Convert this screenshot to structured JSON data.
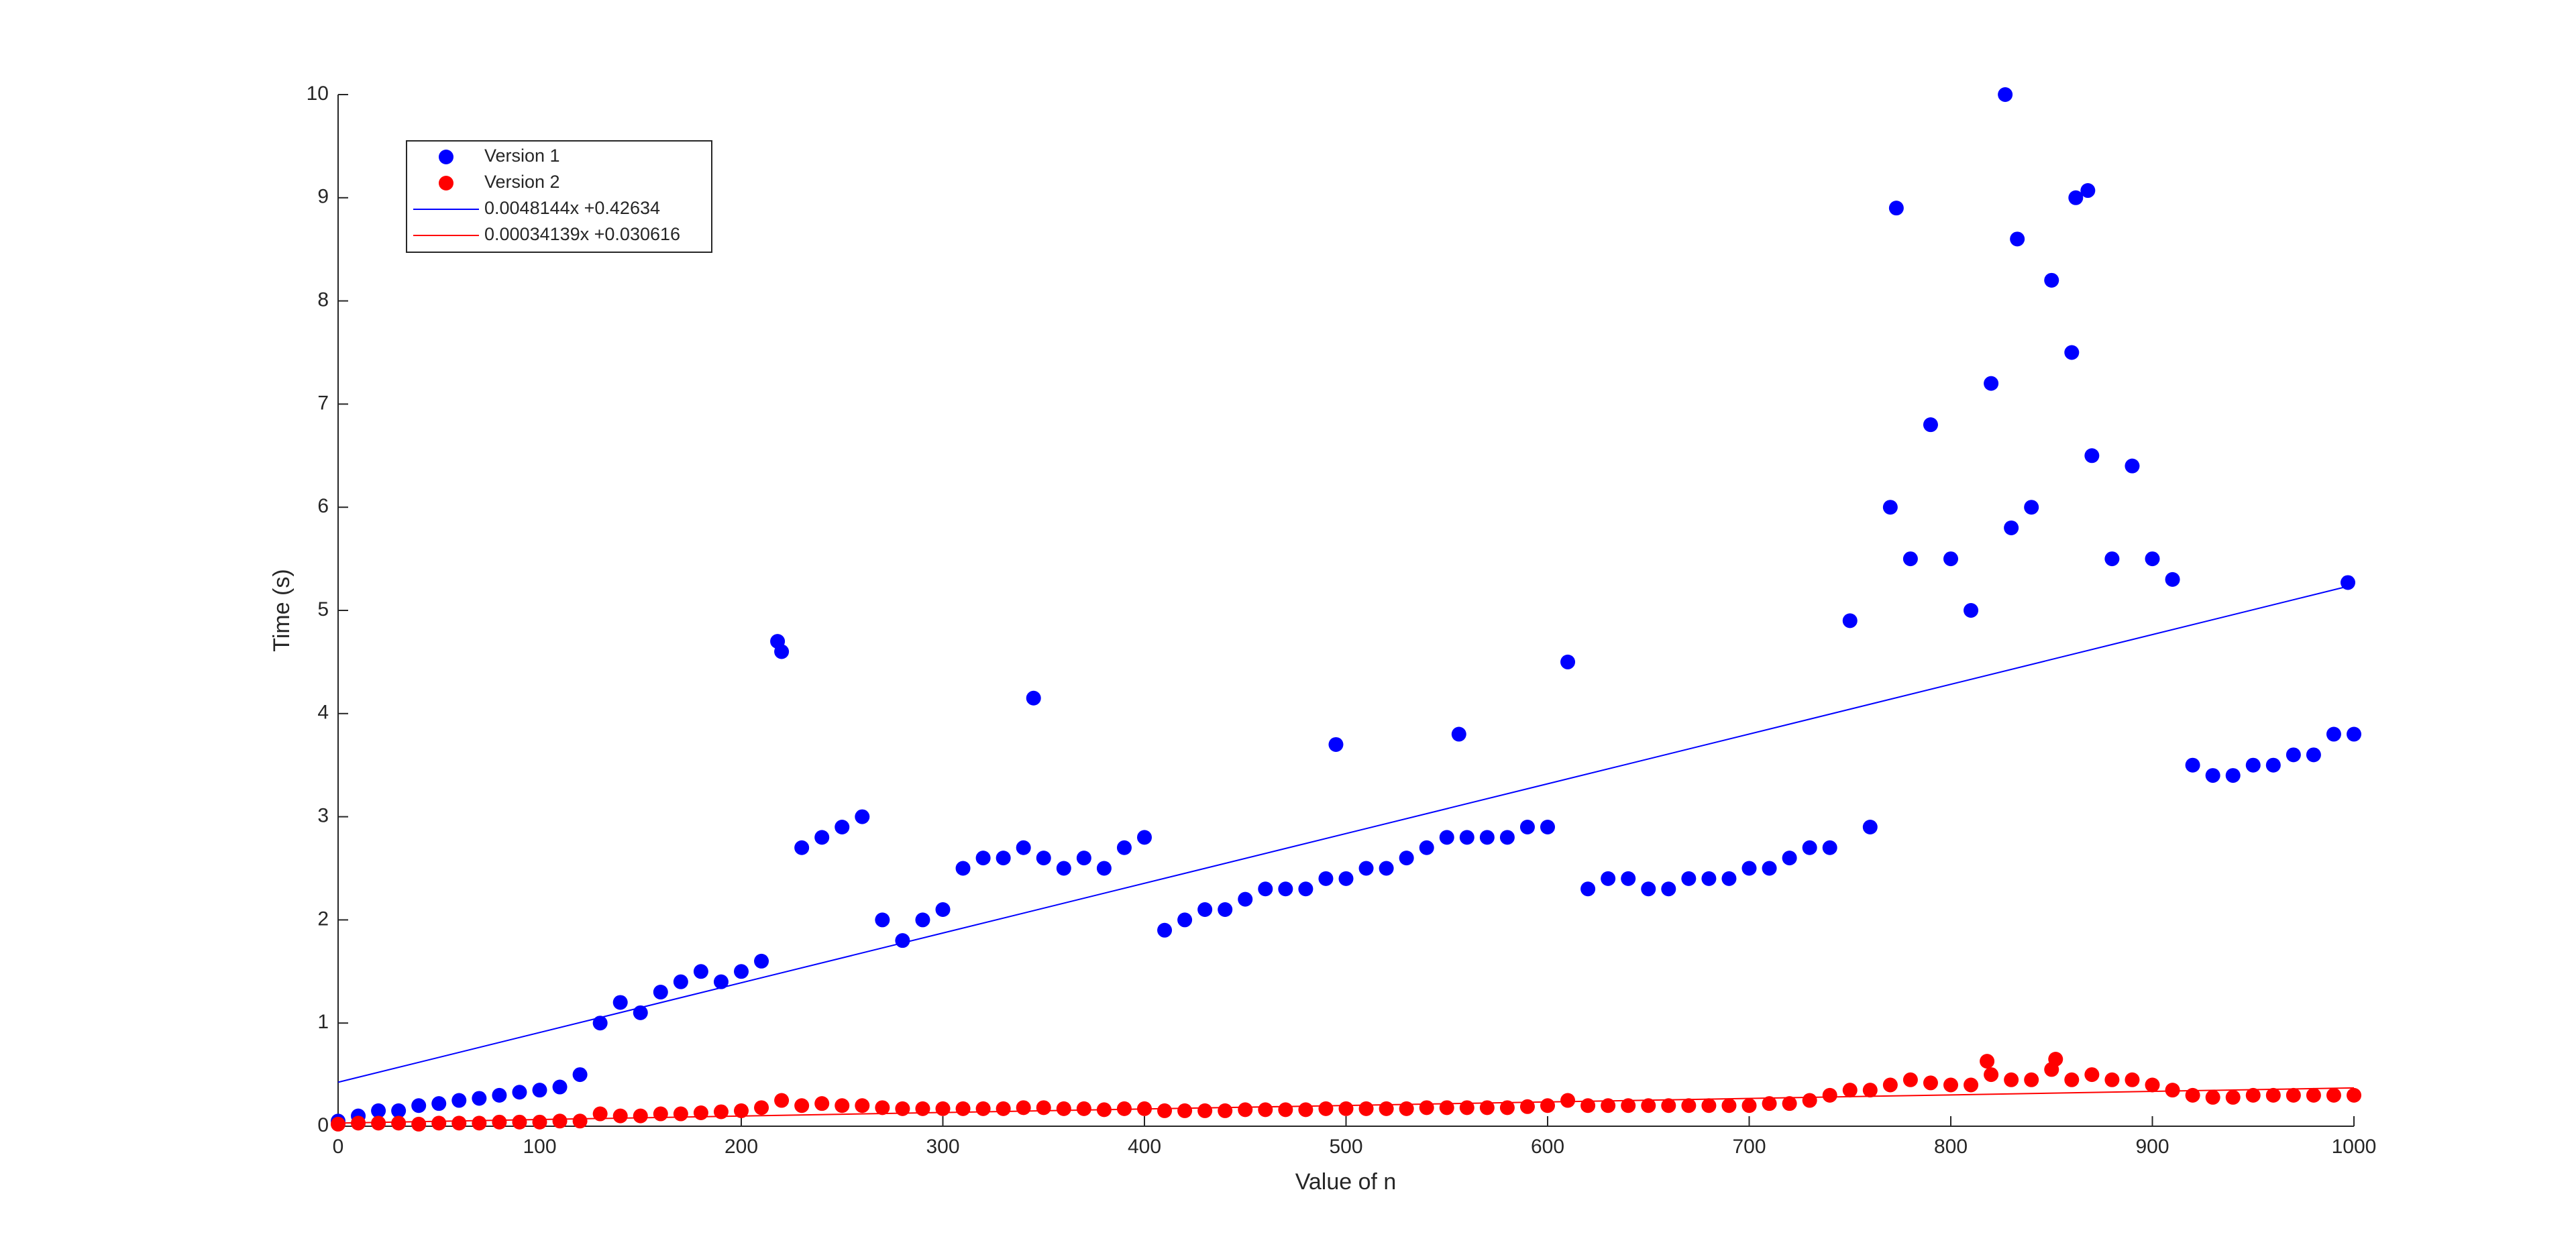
{
  "chart_data": {
    "type": "scatter",
    "x_label": "Value of n",
    "y_label": "Time (s)",
    "xlim": [
      0,
      1000
    ],
    "ylim": [
      0,
      10
    ],
    "xticks": [
      0,
      100,
      200,
      300,
      400,
      500,
      600,
      700,
      800,
      900,
      1000
    ],
    "yticks": [
      0,
      1,
      2,
      3,
      4,
      5,
      6,
      7,
      8,
      9,
      10
    ],
    "legend": "upper left",
    "series": [
      {
        "name": "Version 1",
        "color": "#0000ff",
        "kind": "points",
        "x": [
          0,
          10,
          20,
          30,
          40,
          50,
          60,
          70,
          80,
          90,
          100,
          110,
          120,
          130,
          140,
          150,
          160,
          170,
          180,
          190,
          200,
          210,
          220,
          230,
          240,
          250,
          260,
          270,
          280,
          290,
          300,
          310,
          320,
          330,
          340,
          350,
          360,
          370,
          380,
          390,
          400,
          410,
          420,
          430,
          440,
          450,
          460,
          470,
          480,
          490,
          500,
          510,
          520,
          530,
          540,
          550,
          560,
          570,
          580,
          590,
          600,
          610,
          620,
          630,
          640,
          650,
          660,
          670,
          680,
          690,
          700,
          710,
          720,
          730,
          740,
          750,
          760,
          770,
          780,
          790,
          800,
          810,
          820,
          830,
          840,
          850,
          860,
          870,
          880,
          890,
          900,
          910,
          920,
          930,
          940,
          950,
          960,
          970,
          980,
          990,
          1000,
          827,
          773,
          868,
          997,
          345,
          495,
          218,
          556,
          862,
          833
        ],
        "values": [
          0.05,
          0.1,
          0.15,
          0.15,
          0.2,
          0.22,
          0.25,
          0.27,
          0.3,
          0.33,
          0.35,
          0.38,
          0.5,
          1.0,
          1.2,
          1.1,
          1.3,
          1.4,
          1.5,
          1.4,
          1.5,
          1.6,
          4.6,
          2.7,
          2.8,
          2.9,
          3.0,
          2.0,
          1.8,
          2.0,
          2.1,
          2.5,
          2.6,
          2.6,
          2.7,
          2.6,
          2.5,
          2.6,
          2.5,
          2.7,
          2.8,
          1.9,
          2.0,
          2.1,
          2.1,
          2.2,
          2.3,
          2.3,
          2.3,
          2.4,
          2.4,
          2.5,
          2.5,
          2.6,
          2.7,
          2.8,
          2.8,
          2.8,
          2.8,
          2.9,
          2.9,
          4.5,
          2.3,
          2.4,
          2.4,
          2.3,
          2.3,
          2.4,
          2.4,
          2.4,
          2.5,
          2.5,
          2.6,
          2.7,
          2.7,
          4.9,
          2.9,
          6.0,
          5.5,
          6.8,
          5.5,
          5.0,
          7.2,
          5.8,
          6.0,
          8.2,
          7.5,
          6.5,
          5.5,
          6.4,
          5.5,
          5.3,
          3.5,
          3.4,
          3.4,
          3.5,
          3.5,
          3.6,
          3.6,
          3.8,
          3.8,
          10,
          8.9,
          9.07,
          5.27,
          4.15,
          3.7,
          4.7,
          3.8,
          9.0,
          8.6
        ]
      },
      {
        "name": "Version 2",
        "color": "#ff0000",
        "kind": "points",
        "x": [
          0,
          10,
          20,
          30,
          40,
          50,
          60,
          70,
          80,
          90,
          100,
          110,
          120,
          130,
          140,
          150,
          160,
          170,
          180,
          190,
          200,
          210,
          220,
          230,
          240,
          250,
          260,
          270,
          280,
          290,
          300,
          310,
          320,
          330,
          340,
          350,
          360,
          370,
          380,
          390,
          400,
          410,
          420,
          430,
          440,
          450,
          460,
          470,
          480,
          490,
          500,
          510,
          520,
          530,
          540,
          550,
          560,
          570,
          580,
          590,
          600,
          610,
          620,
          630,
          640,
          650,
          660,
          670,
          680,
          690,
          700,
          710,
          720,
          730,
          740,
          750,
          760,
          770,
          780,
          790,
          800,
          810,
          820,
          830,
          840,
          850,
          860,
          870,
          880,
          890,
          900,
          910,
          920,
          930,
          940,
          950,
          960,
          970,
          980,
          990,
          1000,
          818,
          852
        ],
        "values": [
          0.02,
          0.03,
          0.03,
          0.03,
          0.02,
          0.03,
          0.03,
          0.03,
          0.04,
          0.04,
          0.04,
          0.05,
          0.05,
          0.12,
          0.1,
          0.1,
          0.12,
          0.12,
          0.13,
          0.14,
          0.15,
          0.18,
          0.25,
          0.2,
          0.22,
          0.2,
          0.2,
          0.18,
          0.17,
          0.17,
          0.17,
          0.17,
          0.17,
          0.17,
          0.18,
          0.18,
          0.17,
          0.17,
          0.16,
          0.17,
          0.17,
          0.15,
          0.15,
          0.15,
          0.15,
          0.16,
          0.16,
          0.16,
          0.16,
          0.17,
          0.17,
          0.17,
          0.17,
          0.17,
          0.18,
          0.18,
          0.18,
          0.18,
          0.18,
          0.19,
          0.2,
          0.25,
          0.2,
          0.2,
          0.2,
          0.2,
          0.2,
          0.2,
          0.2,
          0.2,
          0.2,
          0.22,
          0.22,
          0.25,
          0.3,
          0.35,
          0.35,
          0.4,
          0.45,
          0.42,
          0.4,
          0.4,
          0.5,
          0.45,
          0.45,
          0.55,
          0.45,
          0.5,
          0.45,
          0.45,
          0.4,
          0.35,
          0.3,
          0.28,
          0.28,
          0.3,
          0.3,
          0.3,
          0.3,
          0.3,
          0.3,
          0.63,
          0.65
        ]
      },
      {
        "name": "0.0048144x +0.42634",
        "color": "#0000ff",
        "kind": "line",
        "x": [
          0,
          1000
        ],
        "values": [
          0.42634,
          5.24774
        ]
      },
      {
        "name": "0.00034139x +0.030616",
        "color": "#ff0000",
        "kind": "line",
        "x": [
          0,
          1000
        ],
        "values": [
          0.030616,
          0.371756
        ]
      }
    ]
  }
}
